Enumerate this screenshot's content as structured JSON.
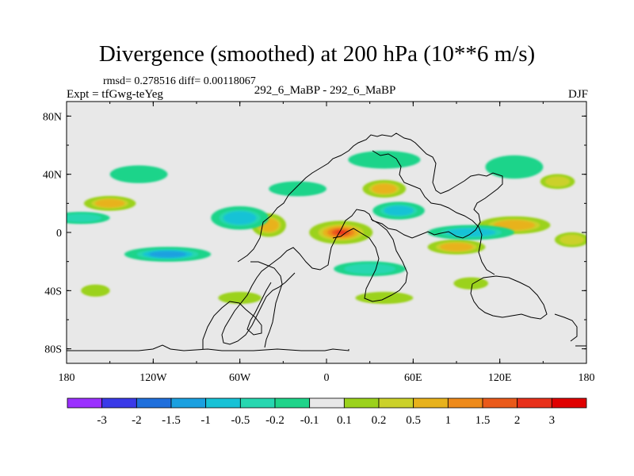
{
  "header": {
    "title": "Divergence (smoothed) at 200 hPa (10**6 m/s)",
    "stats": "rmsd= 0.278516 diff= 0.00118067",
    "experiment": "Expt = tfGwg-teYeg",
    "case": "292_6_MaBP - 292_6_MaBP",
    "season": "DJF"
  },
  "chart_data": {
    "type": "heatmap",
    "title": "Divergence (smoothed) at 200 hPa (10**6 m/s)",
    "xlabel": "",
    "ylabel": "",
    "xlim": [
      -180,
      180
    ],
    "ylim": [
      -90,
      90
    ],
    "x_ticks": [
      -180,
      -120,
      -60,
      0,
      60,
      120,
      180
    ],
    "x_tick_labels": [
      "180",
      "120W",
      "60W",
      "0",
      "60E",
      "120E",
      "180"
    ],
    "y_ticks": [
      80,
      40,
      0,
      -40,
      -80
    ],
    "y_tick_labels": [
      "80N",
      "40N",
      "0",
      "40S",
      "80S"
    ],
    "colorbar": {
      "labels": [
        "-3",
        "-2",
        "-1.5",
        "-1",
        "-0.5",
        "-0.2",
        "-0.1",
        "0.1",
        "0.2",
        "0.5",
        "1",
        "1.5",
        "2",
        "3"
      ],
      "colors": [
        "#9b30ff",
        "#3a3ae8",
        "#1f6fdc",
        "#1aa0e0",
        "#17c2d6",
        "#27d7b0",
        "#1fd48a",
        "#e8e8e8",
        "#9bd21c",
        "#cbd12a",
        "#e8b21c",
        "#ee8a1a",
        "#ea5a1a",
        "#e8301a",
        "#e00000"
      ]
    },
    "features": [
      {
        "lon": 10,
        "lat": 0,
        "value": 2.5,
        "dlon": 22,
        "dlat": 8
      },
      {
        "lon": 40,
        "lat": 30,
        "value": 1.0,
        "dlon": 15,
        "dlat": 6
      },
      {
        "lon": -150,
        "lat": 20,
        "value": 1.0,
        "dlon": 18,
        "dlat": 5
      },
      {
        "lon": -40,
        "lat": 5,
        "value": 0.8,
        "dlon": 12,
        "dlat": 8
      },
      {
        "lon": 130,
        "lat": 5,
        "value": 0.7,
        "dlon": 25,
        "dlat": 6
      },
      {
        "lon": 90,
        "lat": -10,
        "value": 0.8,
        "dlon": 20,
        "dlat": 5
      },
      {
        "lon": 170,
        "lat": -5,
        "value": 0.6,
        "dlon": 12,
        "dlat": 5
      },
      {
        "lon": -110,
        "lat": -15,
        "value": -1.2,
        "dlon": 30,
        "dlat": 5
      },
      {
        "lon": -60,
        "lat": 10,
        "value": -0.8,
        "dlon": 20,
        "dlat": 8
      },
      {
        "lon": 100,
        "lat": 0,
        "value": -1.0,
        "dlon": 30,
        "dlat": 5
      },
      {
        "lon": 30,
        "lat": -25,
        "value": -0.6,
        "dlon": 25,
        "dlat": 5
      },
      {
        "lon": -170,
        "lat": 10,
        "value": -0.5,
        "dlon": 20,
        "dlat": 4
      },
      {
        "lon": 50,
        "lat": 15,
        "value": -0.8,
        "dlon": 18,
        "dlat": 6
      },
      {
        "lon": -130,
        "lat": 40,
        "value": -0.3,
        "dlon": 20,
        "dlat": 6
      },
      {
        "lon": 40,
        "lat": 50,
        "value": -0.3,
        "dlon": 25,
        "dlat": 6
      },
      {
        "lon": 130,
        "lat": 45,
        "value": -0.3,
        "dlon": 20,
        "dlat": 8
      },
      {
        "lon": -60,
        "lat": -45,
        "value": 0.3,
        "dlon": 15,
        "dlat": 4
      },
      {
        "lon": 40,
        "lat": -45,
        "value": 0.2,
        "dlon": 20,
        "dlat": 4
      },
      {
        "lon": 100,
        "lat": -35,
        "value": 0.2,
        "dlon": 12,
        "dlat": 4
      },
      {
        "lon": -160,
        "lat": -40,
        "value": 0.2,
        "dlon": 10,
        "dlat": 4
      },
      {
        "lon": 160,
        "lat": 35,
        "value": 0.5,
        "dlon": 12,
        "dlat": 5
      },
      {
        "lon": -20,
        "lat": 30,
        "value": -0.3,
        "dlon": 20,
        "dlat": 5
      }
    ]
  }
}
